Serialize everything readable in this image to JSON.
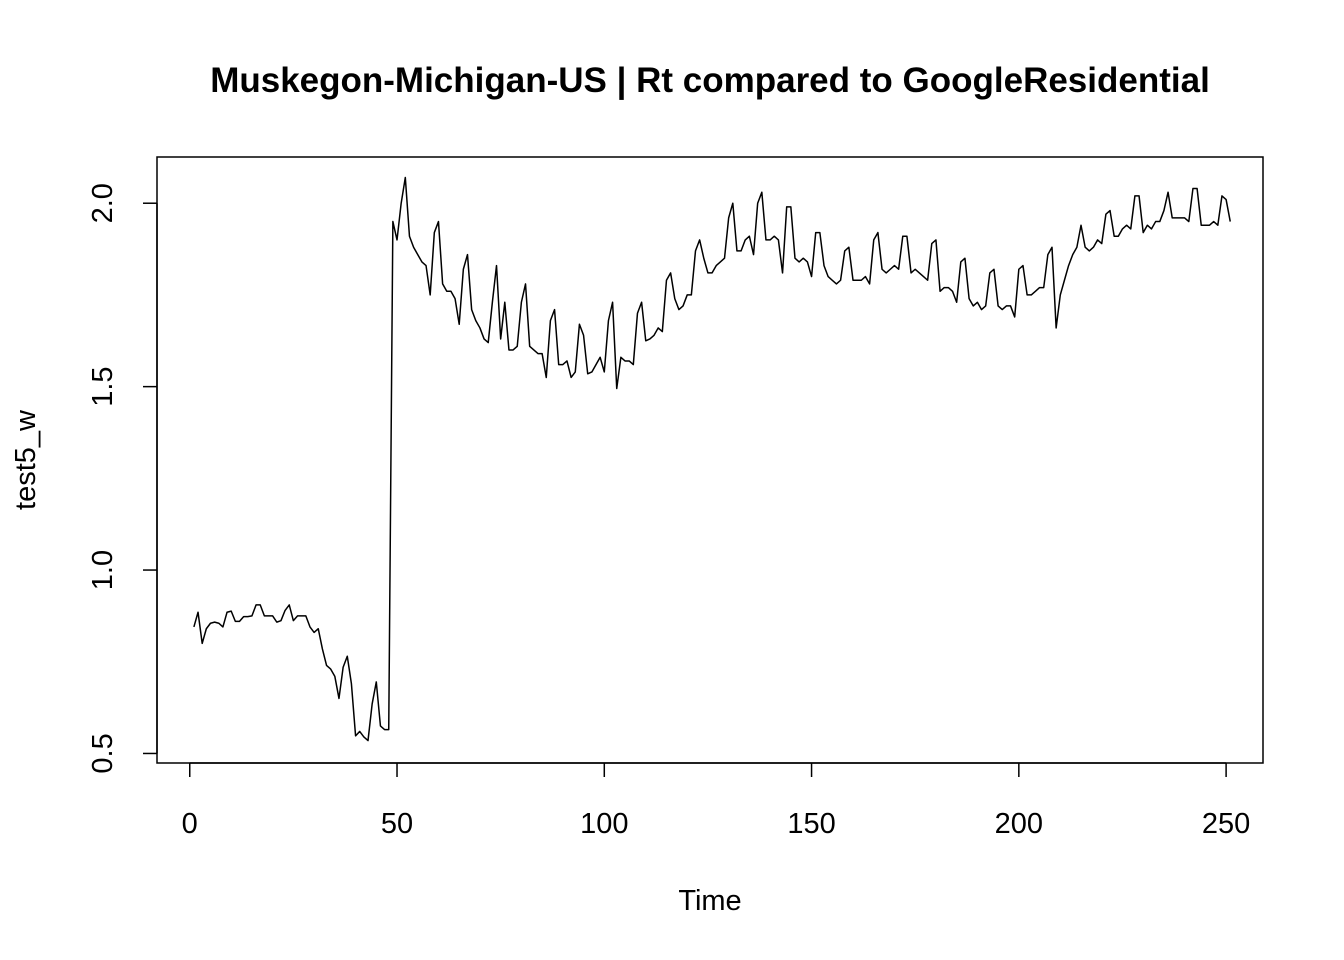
{
  "chart_data": {
    "type": "line",
    "title": "Muskegon-Michigan-US | Rt compared to GoogleResidential",
    "xlabel": "Time",
    "ylabel": "test5_w",
    "xlim": [
      -7.9,
      258.9
    ],
    "ylim": [
      0.474,
      2.126
    ],
    "xticks": [
      0,
      50,
      100,
      150,
      200,
      250
    ],
    "yticks": [
      0.5,
      1.0,
      1.5,
      2.0
    ],
    "xtick_labels": [
      "0",
      "50",
      "100",
      "150",
      "200",
      "250"
    ],
    "ytick_labels": [
      "0.5",
      "1.0",
      "1.5",
      "2.0"
    ],
    "grid": false,
    "series": [
      {
        "color": "#000000",
        "x_start": 1,
        "values": [
          0.845,
          0.885,
          0.8,
          0.84,
          0.855,
          0.858,
          0.855,
          0.845,
          0.885,
          0.888,
          0.86,
          0.86,
          0.873,
          0.873,
          0.875,
          0.905,
          0.905,
          0.875,
          0.875,
          0.875,
          0.858,
          0.862,
          0.89,
          0.905,
          0.862,
          0.875,
          0.875,
          0.875,
          0.845,
          0.83,
          0.84,
          0.785,
          0.74,
          0.73,
          0.71,
          0.65,
          0.735,
          0.765,
          0.69,
          0.548,
          0.56,
          0.545,
          0.535,
          0.635,
          0.695,
          0.575,
          0.565,
          0.565,
          1.95,
          1.9,
          2.0,
          2.07,
          1.91,
          1.88,
          1.86,
          1.84,
          1.83,
          1.75,
          1.92,
          1.95,
          1.78,
          1.76,
          1.76,
          1.74,
          1.67,
          1.82,
          1.86,
          1.71,
          1.68,
          1.66,
          1.63,
          1.62,
          1.73,
          1.83,
          1.63,
          1.73,
          1.6,
          1.6,
          1.61,
          1.73,
          1.78,
          1.61,
          1.6,
          1.59,
          1.59,
          1.525,
          1.68,
          1.71,
          1.56,
          1.56,
          1.57,
          1.525,
          1.54,
          1.67,
          1.64,
          1.535,
          1.54,
          1.56,
          1.58,
          1.54,
          1.68,
          1.73,
          1.495,
          1.58,
          1.57,
          1.57,
          1.56,
          1.7,
          1.73,
          1.625,
          1.63,
          1.64,
          1.66,
          1.65,
          1.79,
          1.81,
          1.74,
          1.71,
          1.72,
          1.75,
          1.75,
          1.87,
          1.9,
          1.85,
          1.81,
          1.81,
          1.83,
          1.84,
          1.85,
          1.96,
          2.0,
          1.87,
          1.87,
          1.9,
          1.91,
          1.86,
          2.0,
          2.03,
          1.9,
          1.9,
          1.91,
          1.9,
          1.81,
          1.99,
          1.99,
          1.85,
          1.84,
          1.85,
          1.84,
          1.8,
          1.92,
          1.92,
          1.83,
          1.8,
          1.79,
          1.78,
          1.79,
          1.87,
          1.88,
          1.79,
          1.79,
          1.79,
          1.8,
          1.78,
          1.9,
          1.92,
          1.82,
          1.81,
          1.82,
          1.83,
          1.82,
          1.91,
          1.91,
          1.81,
          1.82,
          1.81,
          1.8,
          1.79,
          1.89,
          1.9,
          1.76,
          1.77,
          1.77,
          1.76,
          1.73,
          1.84,
          1.85,
          1.74,
          1.72,
          1.73,
          1.71,
          1.72,
          1.81,
          1.82,
          1.72,
          1.71,
          1.72,
          1.72,
          1.69,
          1.82,
          1.83,
          1.75,
          1.75,
          1.76,
          1.77,
          1.77,
          1.86,
          1.88,
          1.66,
          1.75,
          1.79,
          1.83,
          1.86,
          1.88,
          1.94,
          1.88,
          1.87,
          1.88,
          1.9,
          1.89,
          1.97,
          1.98,
          1.91,
          1.91,
          1.93,
          1.94,
          1.93,
          2.02,
          2.02,
          1.92,
          1.94,
          1.93,
          1.95,
          1.95,
          1.98,
          2.03,
          1.96,
          1.96,
          1.96,
          1.96,
          1.95,
          2.04,
          2.04,
          1.94,
          1.94,
          1.94,
          1.95,
          1.94,
          2.02,
          2.01,
          1.95
        ]
      }
    ]
  }
}
